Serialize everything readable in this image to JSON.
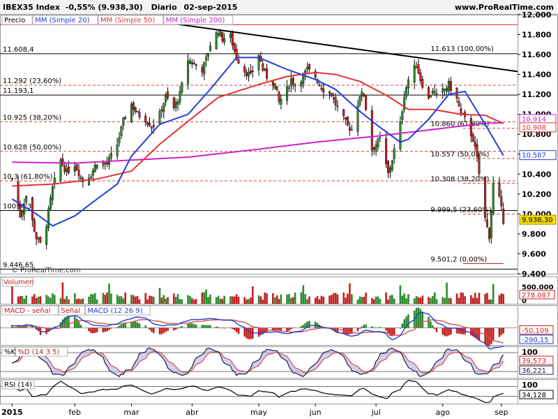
{
  "header": {
    "symbol": "IBEX35 Index",
    "change": "-0,55% (9.938,30)",
    "period": "Diario",
    "date": "02-sep-2015",
    "site": "www.ProRealTime.com"
  },
  "colors": {
    "up": "#2e8b2e",
    "down": "#c42020",
    "ma20": "#1f3fd6",
    "ma50": "#e33333",
    "ma200": "#cc22cc",
    "trend": "#000000",
    "fib": "#d04040"
  },
  "chart_data": [
    {
      "type": "candlestick",
      "panel": "price",
      "legend": [
        "Precio",
        "MM (Simple 20)",
        "MM (Simple 50)",
        "MM (Simple 200)"
      ],
      "y_ticks": [
        "12.000",
        "11.800",
        "11.600",
        "11.400",
        "11.200",
        "11.000",
        "10.800",
        "10.600",
        "10.400",
        "10.200",
        "10.000",
        "9.800",
        "9.600",
        "9.400"
      ],
      "ylim": [
        9400,
        12000
      ],
      "x_ticks": [
        "2015",
        "feb",
        "mar",
        "abr",
        "may",
        "jun",
        "jul",
        "ago",
        "sep"
      ],
      "x_tick_dates": [
        "2015-01-02",
        "2015-02-02",
        "2015-03-02",
        "2015-04-01",
        "2015-05-04",
        "2015-06-01",
        "2015-07-01",
        "2015-08-03",
        "2015-09-01"
      ],
      "last_close": 9938.3,
      "price_path": [
        [
          "2015-01-02",
          10350
        ],
        [
          "2015-01-06",
          9980
        ],
        [
          "2015-01-09",
          10180
        ],
        [
          "2015-01-14",
          9760
        ],
        [
          "2015-01-16",
          9700
        ],
        [
          "2015-01-19",
          9900
        ],
        [
          "2015-01-22",
          10260
        ],
        [
          "2015-01-26",
          10540
        ],
        [
          "2015-01-29",
          10420
        ],
        [
          "2015-02-02",
          10500
        ],
        [
          "2015-02-06",
          10330
        ],
        [
          "2015-02-10",
          10400
        ],
        [
          "2015-02-13",
          10520
        ],
        [
          "2015-02-18",
          10500
        ],
        [
          "2015-02-23",
          10700
        ],
        [
          "2015-02-26",
          10930
        ],
        [
          "2015-03-02",
          11100
        ],
        [
          "2015-03-05",
          11000
        ],
        [
          "2015-03-09",
          10950
        ],
        [
          "2015-03-12",
          10880
        ],
        [
          "2015-03-16",
          11000
        ],
        [
          "2015-03-19",
          11180
        ],
        [
          "2015-03-23",
          11060
        ],
        [
          "2015-03-26",
          11200
        ],
        [
          "2015-03-30",
          11550
        ],
        [
          "2015-04-02",
          11500
        ],
        [
          "2015-04-06",
          11450
        ],
        [
          "2015-04-08",
          11550
        ],
        [
          "2015-04-10",
          11700
        ],
        [
          "2015-04-14",
          11840
        ],
        [
          "2015-04-16",
          11760
        ],
        [
          "2015-04-20",
          11780
        ],
        [
          "2015-04-23",
          11570
        ],
        [
          "2015-04-27",
          11440
        ],
        [
          "2015-04-30",
          11380
        ],
        [
          "2015-05-04",
          11600
        ],
        [
          "2015-05-06",
          11450
        ],
        [
          "2015-05-08",
          11380
        ],
        [
          "2015-05-12",
          11300
        ],
        [
          "2015-05-14",
          11120
        ],
        [
          "2015-05-18",
          11250
        ],
        [
          "2015-05-20",
          11350
        ],
        [
          "2015-05-22",
          11300
        ],
        [
          "2015-05-26",
          11380
        ],
        [
          "2015-05-28",
          11450
        ],
        [
          "2015-06-01",
          11380
        ],
        [
          "2015-06-03",
          11300
        ],
        [
          "2015-06-05",
          11250
        ],
        [
          "2015-06-09",
          11200
        ],
        [
          "2015-06-11",
          11100
        ],
        [
          "2015-06-15",
          10950
        ],
        [
          "2015-06-17",
          10880
        ],
        [
          "2015-06-19",
          10850
        ],
        [
          "2015-06-23",
          11200
        ],
        [
          "2015-06-25",
          11200
        ],
        [
          "2015-06-29",
          10650
        ],
        [
          "2015-07-01",
          10700
        ],
        [
          "2015-07-03",
          10750
        ],
        [
          "2015-07-07",
          10400
        ],
        [
          "2015-07-09",
          10550
        ],
        [
          "2015-07-13",
          10900
        ],
        [
          "2015-07-15",
          11200
        ],
        [
          "2015-07-17",
          11350
        ],
        [
          "2015-07-21",
          11500
        ],
        [
          "2015-07-23",
          11350
        ],
        [
          "2015-07-27",
          11150
        ],
        [
          "2015-07-29",
          11250
        ],
        [
          "2015-07-31",
          11180
        ],
        [
          "2015-08-04",
          11250
        ],
        [
          "2015-08-06",
          11300
        ],
        [
          "2015-08-10",
          11150
        ],
        [
          "2015-08-12",
          11000
        ],
        [
          "2015-08-14",
          10950
        ],
        [
          "2015-08-18",
          10750
        ],
        [
          "2015-08-20",
          10550
        ],
        [
          "2015-08-24",
          9950
        ],
        [
          "2015-08-26",
          9780
        ],
        [
          "2015-08-28",
          10300
        ],
        [
          "2015-08-31",
          10150
        ],
        [
          "2015-09-02",
          9938
        ]
      ],
      "ma20": [
        [
          "2015-01-02",
          10150
        ],
        [
          "2015-01-14",
          10000
        ],
        [
          "2015-01-22",
          9880
        ],
        [
          "2015-02-02",
          9980
        ],
        [
          "2015-02-13",
          10150
        ],
        [
          "2015-02-23",
          10300
        ],
        [
          "2015-03-02",
          10580
        ],
        [
          "2015-03-16",
          10900
        ],
        [
          "2015-03-30",
          11000
        ],
        [
          "2015-04-10",
          11250
        ],
        [
          "2015-04-23",
          11570
        ],
        [
          "2015-05-04",
          11570
        ],
        [
          "2015-05-18",
          11450
        ],
        [
          "2015-06-01",
          11350
        ],
        [
          "2015-06-11",
          11250
        ],
        [
          "2015-06-23",
          11030
        ],
        [
          "2015-07-01",
          10900
        ],
        [
          "2015-07-13",
          10720
        ],
        [
          "2015-07-17",
          10750
        ],
        [
          "2015-07-27",
          10950
        ],
        [
          "2015-08-06",
          11200
        ],
        [
          "2015-08-14",
          11230
        ],
        [
          "2015-08-24",
          10900
        ],
        [
          "2015-09-02",
          10587
        ]
      ],
      "ma50": [
        [
          "2015-01-02",
          10280
        ],
        [
          "2015-01-22",
          10300
        ],
        [
          "2015-02-13",
          10350
        ],
        [
          "2015-03-02",
          10430
        ],
        [
          "2015-03-16",
          10700
        ],
        [
          "2015-03-30",
          10930
        ],
        [
          "2015-04-14",
          11170
        ],
        [
          "2015-05-04",
          11300
        ],
        [
          "2015-05-18",
          11380
        ],
        [
          "2015-06-01",
          11420
        ],
        [
          "2015-06-11",
          11400
        ],
        [
          "2015-06-23",
          11330
        ],
        [
          "2015-07-07",
          11180
        ],
        [
          "2015-07-17",
          11050
        ],
        [
          "2015-07-29",
          11050
        ],
        [
          "2015-08-12",
          11000
        ],
        [
          "2015-08-24",
          10990
        ],
        [
          "2015-09-02",
          10908
        ]
      ],
      "ma200": [
        [
          "2015-01-02",
          10520
        ],
        [
          "2015-02-02",
          10510
        ],
        [
          "2015-03-02",
          10540
        ],
        [
          "2015-03-30",
          10570
        ],
        [
          "2015-05-04",
          10650
        ],
        [
          "2015-06-01",
          10720
        ],
        [
          "2015-07-01",
          10780
        ],
        [
          "2015-08-03",
          10860
        ],
        [
          "2015-08-24",
          10910
        ],
        [
          "2015-09-02",
          10914
        ]
      ],
      "trend_line": [
        [
          "2015-03-05",
          11960
        ],
        [
          "2015-09-09",
          11430
        ]
      ],
      "horizontal_lines": [
        {
          "value": 11900,
          "style": "solid",
          "color": "#c42020"
        },
        {
          "value": 11608.4,
          "label": "11.608,4",
          "style": "solid",
          "color": "#000000"
        },
        {
          "value": 11193.1,
          "label": "11.193,1",
          "style": "solid",
          "color": "#000000"
        },
        {
          "value": 10034.3,
          "label": "10034,3",
          "style": "solid",
          "color": "#000000"
        },
        {
          "value": 9446.65,
          "label": "9.446,65",
          "style": "solid",
          "color": "#000000"
        },
        {
          "value": 9501.2,
          "style": "solid",
          "color": "#c42020"
        }
      ],
      "fib_left": [
        {
          "value": 11292,
          "label": "11.292 (23,60%)"
        },
        {
          "value": 10925,
          "label": "10.925 (38,20%)"
        },
        {
          "value": 10628,
          "label": "10.628 (50,00%)"
        },
        {
          "value": 10332,
          "label": "10.3   (61,80%)"
        }
      ],
      "fib_right": [
        {
          "value": 11613,
          "label": "11.613 (100,00%)"
        },
        {
          "value": 10860,
          "label": "10.860 (61,80%)"
        },
        {
          "value": 10557,
          "label": "10.557 (50,00%)"
        },
        {
          "value": 10308,
          "label": "10.308 (38,20%)"
        },
        {
          "value": 9999.5,
          "label": "9.999,5 (23,60%)"
        },
        {
          "value": 9501.2,
          "label": "9.501,2 (0,00%)"
        }
      ],
      "right_labels": [
        {
          "value": 10914,
          "label": "10.914",
          "color": "#cc22cc"
        },
        {
          "value": 10908,
          "label": "10.908",
          "color": "#e33333"
        },
        {
          "value": 10587,
          "label": "10.587",
          "color": "#1f3fd6"
        },
        {
          "value": 9938.3,
          "label": "9.938,30",
          "color": "#f5d800"
        }
      ]
    },
    {
      "type": "bar",
      "panel": "volume",
      "title": "Volumen",
      "y_ticks": [
        "500.000",
        "0"
      ],
      "last_value_label": "278.087",
      "ylim": [
        0,
        800000
      ]
    },
    {
      "type": "histogram+line",
      "panel": "macd",
      "legend": [
        "MACD - señal",
        "Señal",
        "MACD (12 26 9)"
      ],
      "y_ticks": [
        "0"
      ],
      "value_labels": [
        "-50,109",
        "-290,15"
      ]
    },
    {
      "type": "line",
      "panel": "stochastic",
      "legend": [
        "%K",
        "%D (14 3 5)"
      ],
      "y_ticks": [
        "100"
      ],
      "value_labels": [
        "39,573",
        "36,221"
      ]
    },
    {
      "type": "line",
      "panel": "rsi",
      "legend": [
        "RSI (14)"
      ],
      "y_ticks": [
        "100"
      ],
      "value_labels": [
        "34,128"
      ]
    }
  ],
  "footer": {
    "watermark": "© ProRealTime.com"
  }
}
